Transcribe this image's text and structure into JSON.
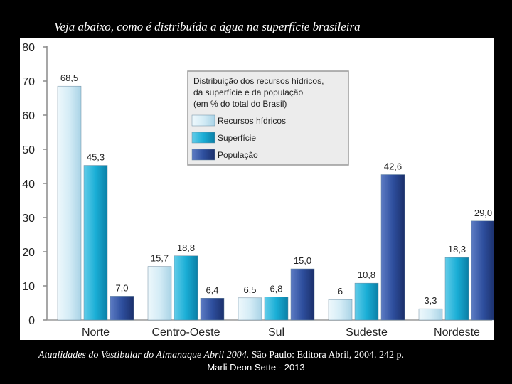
{
  "slide": {
    "title": "Veja abaixo, como é distribuída a água na superfície brasileira",
    "citation_italic": "Atualidades do Vestibular do Almanaque Abril 2004.",
    "citation_rest": " São Paulo: Editora Abril, 2004. 242 p.",
    "author": "Marli Deon Sette - 2013"
  },
  "chart_data": {
    "type": "bar",
    "categories": [
      "Norte",
      "Centro-Oeste",
      "Sul",
      "Sudeste",
      "Nordeste"
    ],
    "series": [
      {
        "name": "Recursos hídricos",
        "values": [
          68.5,
          15.7,
          6.5,
          6,
          3.3
        ],
        "labels": [
          "68,5",
          "15,7",
          "6,5",
          "6",
          "3,3"
        ],
        "color": "#d4ecf6"
      },
      {
        "name": "Superfície",
        "values": [
          45.3,
          18.8,
          6.8,
          10.8,
          18.3
        ],
        "labels": [
          "45,3",
          "18,8",
          "6,8",
          "10,8",
          "18,3"
        ],
        "color": "#1aaed6"
      },
      {
        "name": "População",
        "values": [
          7.0,
          6.4,
          15.0,
          42.6,
          29.0
        ],
        "labels": [
          "7,0",
          "6,4",
          "15,0",
          "42,6",
          "29,0"
        ],
        "color": "#2e4f9e"
      }
    ],
    "legend_title": [
      "Distribuição dos recursos hídricos,",
      "da superfície e da população",
      "(em % do total do Brasil)"
    ],
    "legend_position": "top-right",
    "yticks": [
      "0",
      "10",
      "20",
      "30",
      "40",
      "50",
      "60",
      "70",
      "80"
    ],
    "ylim": [
      0,
      80
    ],
    "grid": false
  }
}
